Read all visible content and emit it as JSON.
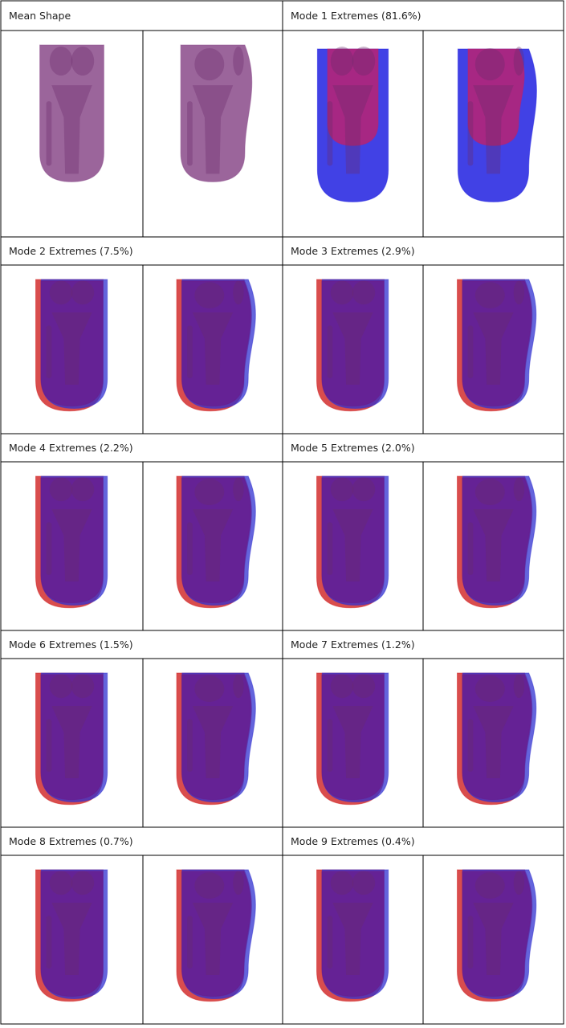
{
  "labels": [
    "Mean Shape",
    "Mode 1 Extremes (81.6%)",
    "Mode 2 Extremes (7.5%)",
    "Mode 3 Extremes (2.9%)",
    "Mode 4 Extremes (2.2%)",
    "Mode 5 Extremes (2.0%)",
    "Mode 6 Extremes (1.5%)",
    "Mode 7 Extremes (1.2%)",
    "Mode 8 Extremes (0.7%)",
    "Mode 9 Extremes (0.4%)"
  ]
}
